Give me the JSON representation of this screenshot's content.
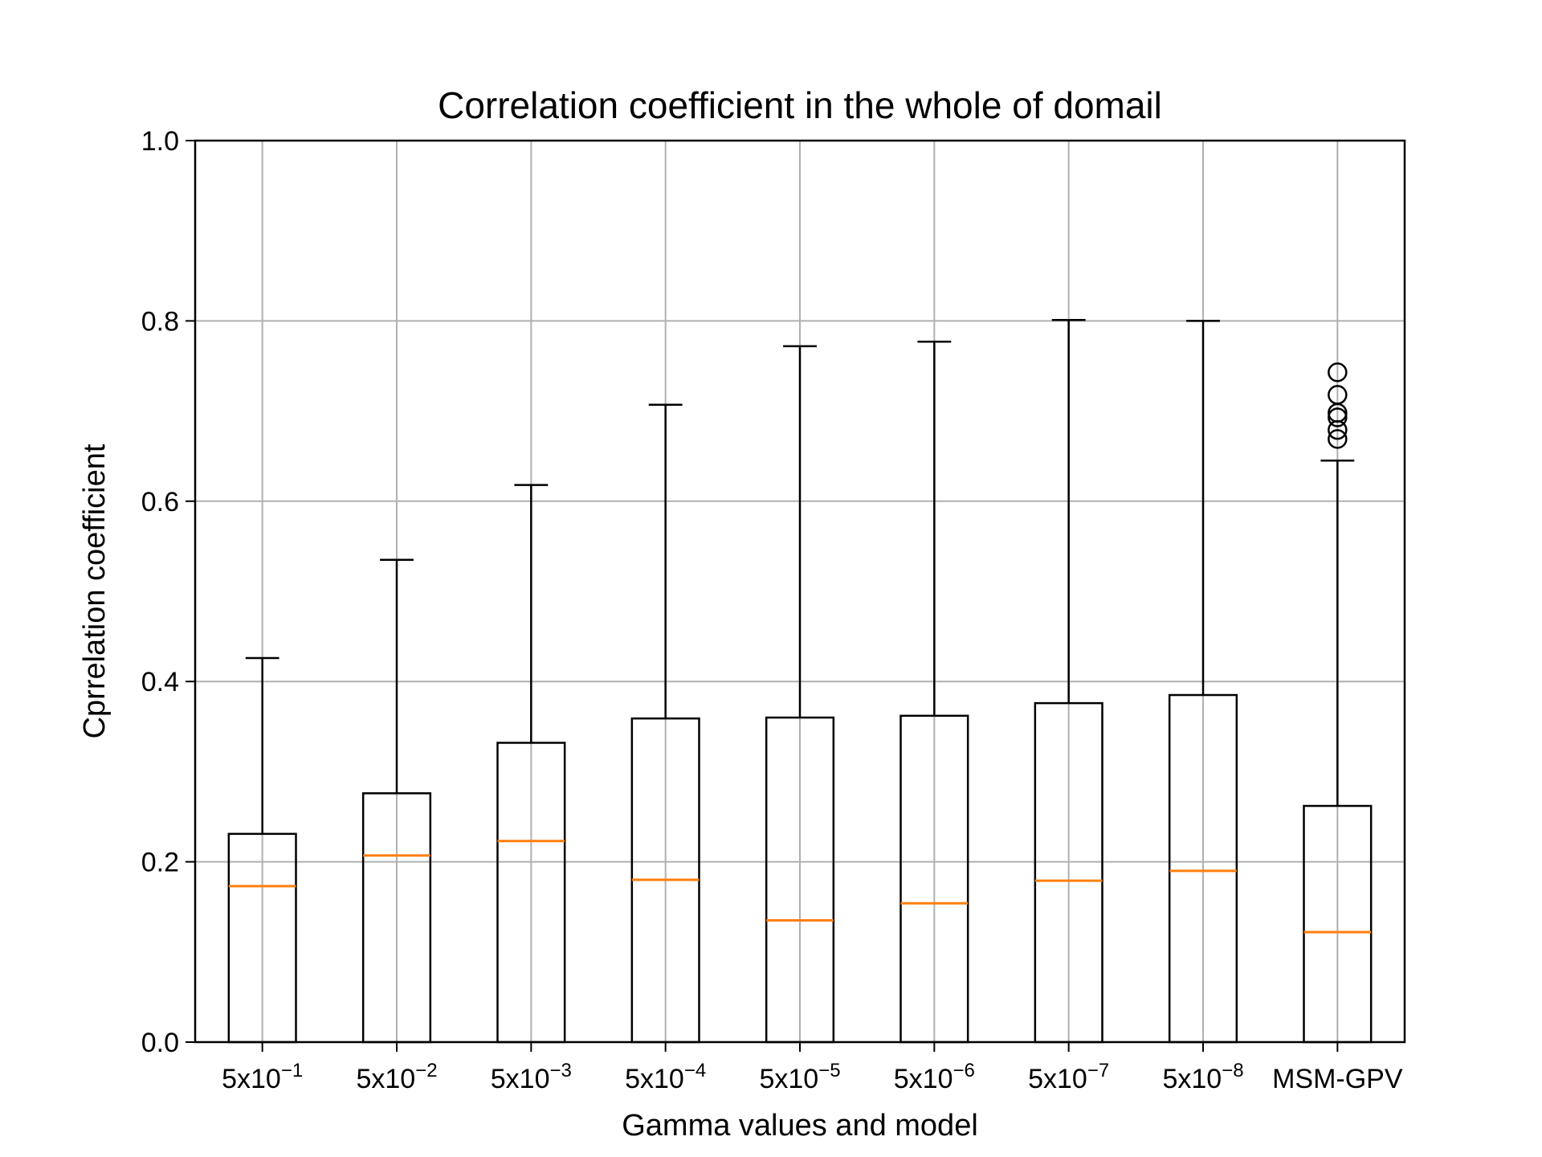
{
  "chart_data": {
    "type": "box",
    "title": "Correlation coefficient in the whole of domail",
    "xlabel": "Gamma values and model",
    "ylabel": "Cprrelation coefficient",
    "ylim": [
      0.0,
      1.0
    ],
    "yticks": [
      "0.0",
      "0.2",
      "0.4",
      "0.6",
      "0.8",
      "1.0"
    ],
    "grid": true,
    "colors": {
      "box": "#000000",
      "median": "#ff7f0e",
      "grid": "#b0b0b0"
    },
    "categories": [
      {
        "base": "5x10",
        "exp": "−1"
      },
      {
        "base": "5x10",
        "exp": "−2"
      },
      {
        "base": "5x10",
        "exp": "−3"
      },
      {
        "base": "5x10",
        "exp": "−4"
      },
      {
        "base": "5x10",
        "exp": "−5"
      },
      {
        "base": "5x10",
        "exp": "−6"
      },
      {
        "base": "5x10",
        "exp": "−7"
      },
      {
        "base": "5x10",
        "exp": "−8"
      },
      {
        "base": "MSM-GPV",
        "exp": ""
      }
    ],
    "boxes": [
      {
        "whislo": 0.0,
        "q1": 0.0,
        "med": 0.173,
        "q3": 0.231,
        "whishi": 0.426,
        "fliers": []
      },
      {
        "whislo": 0.0,
        "q1": 0.0,
        "med": 0.207,
        "q3": 0.276,
        "whishi": 0.535,
        "fliers": []
      },
      {
        "whislo": 0.0,
        "q1": 0.0,
        "med": 0.223,
        "q3": 0.332,
        "whishi": 0.618,
        "fliers": []
      },
      {
        "whislo": 0.0,
        "q1": 0.0,
        "med": 0.18,
        "q3": 0.359,
        "whishi": 0.707,
        "fliers": []
      },
      {
        "whislo": 0.0,
        "q1": 0.0,
        "med": 0.135,
        "q3": 0.36,
        "whishi": 0.772,
        "fliers": []
      },
      {
        "whislo": 0.0,
        "q1": 0.0,
        "med": 0.154,
        "q3": 0.362,
        "whishi": 0.777,
        "fliers": []
      },
      {
        "whislo": 0.0,
        "q1": 0.0,
        "med": 0.179,
        "q3": 0.376,
        "whishi": 0.801,
        "fliers": []
      },
      {
        "whislo": 0.0,
        "q1": 0.0,
        "med": 0.19,
        "q3": 0.385,
        "whishi": 0.8,
        "fliers": []
      },
      {
        "whislo": 0.0,
        "q1": 0.0,
        "med": 0.122,
        "q3": 0.262,
        "whishi": 0.645,
        "fliers": [
          0.669,
          0.679,
          0.693,
          0.698,
          0.718,
          0.743
        ]
      }
    ]
  }
}
